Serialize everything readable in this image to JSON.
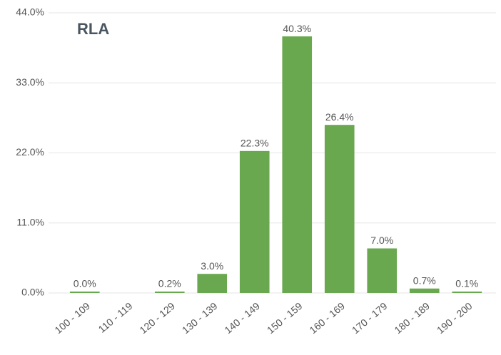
{
  "chart_data": {
    "type": "bar",
    "title": "RLA",
    "categories": [
      "100 - 109",
      "110 - 119",
      "120 - 129",
      "130 - 139",
      "140 - 149",
      "150 - 159",
      "160 - 169",
      "170 - 179",
      "180 - 189",
      "190 - 200"
    ],
    "values": [
      0.0,
      null,
      0.2,
      3.0,
      22.3,
      40.3,
      26.4,
      7.0,
      0.7,
      0.1
    ],
    "value_labels": [
      "0.0%",
      null,
      "0.2%",
      "3.0%",
      "22.3%",
      "40.3%",
      "26.4%",
      "7.0%",
      "0.7%",
      "0.1%"
    ],
    "color": "#6aa84f",
    "ylim": [
      0,
      44
    ],
    "yticks": [
      {
        "value": 0,
        "label": "0.0%"
      },
      {
        "value": 11,
        "label": "11.0%"
      },
      {
        "value": 22,
        "label": "22.0%"
      },
      {
        "value": 33,
        "label": "33.0%"
      },
      {
        "value": 44,
        "label": "44.0%"
      }
    ],
    "grid": true
  }
}
